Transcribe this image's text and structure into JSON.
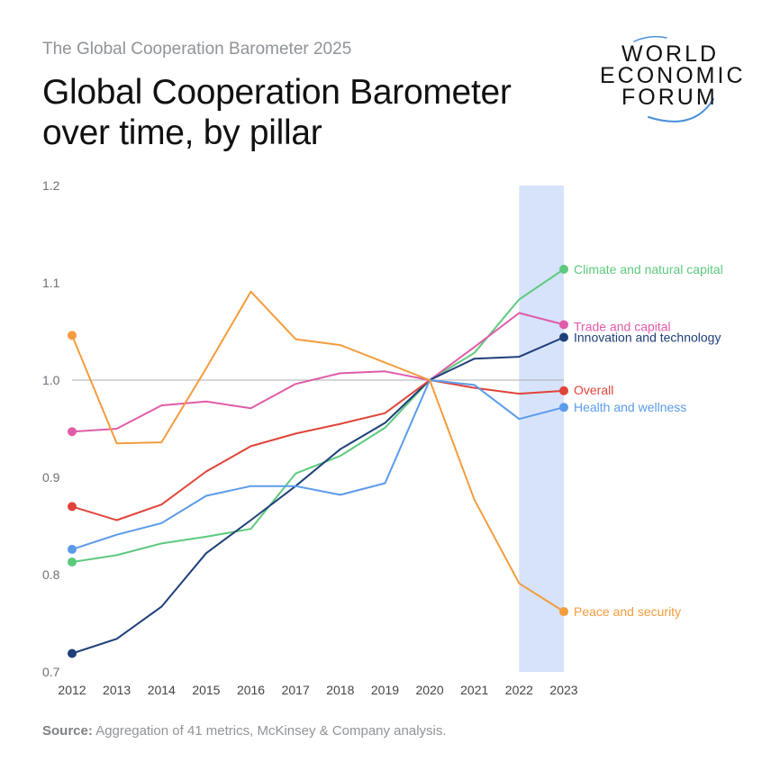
{
  "header": {
    "subtitle": "The Global Cooperation Barometer 2025",
    "title_line1": "Global Cooperation Barometer",
    "title_line2": "over time, by pillar"
  },
  "logo": {
    "line1": "WORLD",
    "line2": "ECONOMIC",
    "line3": "FORUM",
    "color": "#4a90d9"
  },
  "footer": {
    "source_label": "Source:",
    "source_text": "Aggregation of 41 metrics, McKinsey & Company analysis."
  },
  "chart_data": {
    "type": "line",
    "x": [
      "2012",
      "2013",
      "2014",
      "2015",
      "2016",
      "2017",
      "2018",
      "2019",
      "2020",
      "2021",
      "2022",
      "2023"
    ],
    "ylim": [
      0.7,
      1.2
    ],
    "yticks": [
      "0.7",
      "0.8",
      "0.9",
      "1.0",
      "1.1",
      "1.2"
    ],
    "reference_line": 1.0,
    "highlight_band": [
      "2022",
      "2023"
    ],
    "series": [
      {
        "name": "Climate and natural capital",
        "color": "#5ec97e",
        "values": [
          0.813,
          0.82,
          0.832,
          0.839,
          0.847,
          0.904,
          0.922,
          0.951,
          1.0,
          1.028,
          1.083,
          1.114
        ]
      },
      {
        "name": "Trade and capital",
        "color": "#e05ca8",
        "values": [
          0.947,
          0.95,
          0.974,
          0.978,
          0.971,
          0.996,
          1.007,
          1.009,
          1.0,
          1.034,
          1.069,
          1.057
        ]
      },
      {
        "name": "Innovation and technology",
        "color": "#1f3f7a",
        "values": [
          0.719,
          0.734,
          0.767,
          0.822,
          0.856,
          0.891,
          0.929,
          0.956,
          1.0,
          1.022,
          1.024,
          1.044
        ]
      },
      {
        "name": "Overall",
        "color": "#e0443a",
        "values": [
          0.87,
          0.856,
          0.872,
          0.906,
          0.932,
          0.945,
          0.955,
          0.966,
          1.0,
          0.992,
          0.986,
          0.989
        ]
      },
      {
        "name": "Health and wellness",
        "color": "#5b9bea",
        "values": [
          0.826,
          0.841,
          0.853,
          0.881,
          0.891,
          0.891,
          0.882,
          0.894,
          1.0,
          0.995,
          0.96,
          0.972
        ]
      },
      {
        "name": "Peace and security",
        "color": "#f39c3d",
        "values": [
          1.046,
          0.935,
          0.936,
          1.012,
          1.091,
          1.042,
          1.036,
          1.018,
          1.0,
          0.877,
          0.791,
          0.762
        ]
      }
    ]
  }
}
